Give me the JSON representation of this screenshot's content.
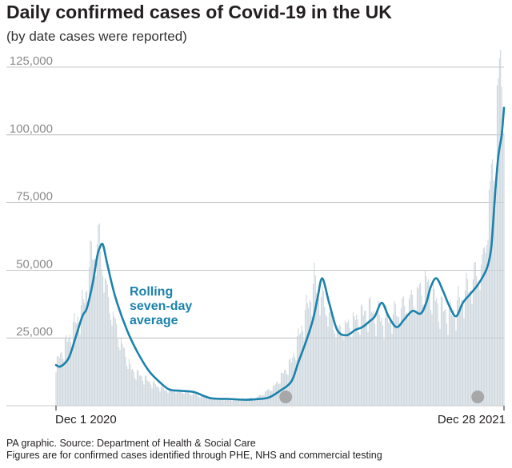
{
  "header": {
    "title": "Daily confirmed cases of Covid-19 in the UK",
    "subtitle": "(by date cases were reported)"
  },
  "source": {
    "line1": "PA graphic. Source: Department of Health & Social Care",
    "line2": "Figures are for confirmed cases identified through PHE, NHS and commercial testing"
  },
  "colors": {
    "bars": "#c9d3da",
    "line": "#1b82ab",
    "grid": "#b8b8b8",
    "marker": "#9e9e9e"
  },
  "chart_data": {
    "type": "bar",
    "title": "Daily confirmed cases of Covid-19 in the UK",
    "subtitle": "(by date cases were reported)",
    "x_start": "2020-12-01",
    "x_end": "2021-12-28",
    "x_tick_labels": [
      "Dec 1 2020",
      "Dec 28 2021"
    ],
    "y_ticks": [
      "25,000",
      "50,000",
      "75,000",
      "100,000",
      "125,000"
    ],
    "ylim": [
      0,
      125000
    ],
    "grid": true,
    "annotation": "Rolling seven-day average",
    "annotation_lines": [
      "Rolling",
      "seven-day",
      "average"
    ],
    "series": [
      {
        "name": "Daily confirmed cases",
        "kind": "bar",
        "dates": [
          "2020-12-01",
          "2020-12-15",
          "2020-12-25",
          "2021-01-01",
          "2021-01-08",
          "2021-01-15",
          "2021-01-25",
          "2021-02-05",
          "2021-02-20",
          "2021-03-05",
          "2021-03-25",
          "2021-04-15",
          "2021-05-05",
          "2021-05-25",
          "2021-06-10",
          "2021-06-25",
          "2021-07-05",
          "2021-07-15",
          "2021-07-25",
          "2021-08-05",
          "2021-08-20",
          "2021-09-01",
          "2021-09-15",
          "2021-10-01",
          "2021-10-12",
          "2021-10-21",
          "2021-11-01",
          "2021-11-12",
          "2021-11-22",
          "2021-12-01",
          "2021-12-10",
          "2021-12-15",
          "2021-12-20",
          "2021-12-24",
          "2021-12-28"
        ],
        "values": [
          15000,
          27000,
          37000,
          55000,
          60000,
          40000,
          25000,
          13000,
          9000,
          6000,
          5000,
          2800,
          2200,
          2800,
          7000,
          16000,
          30000,
          45000,
          36000,
          27000,
          31000,
          35000,
          31000,
          36000,
          40000,
          45000,
          36000,
          33000,
          40000,
          46000,
          52000,
          75000,
          92000,
          122000,
          120000
        ]
      },
      {
        "name": "Rolling seven-day average",
        "kind": "line",
        "dates": [
          "2020-12-01",
          "2020-12-05",
          "2020-12-12",
          "2020-12-18",
          "2020-12-24",
          "2020-12-28",
          "2021-01-02",
          "2021-01-06",
          "2021-01-08",
          "2021-01-11",
          "2021-01-15",
          "2021-01-22",
          "2021-02-01",
          "2021-02-10",
          "2021-02-20",
          "2021-03-01",
          "2021-03-10",
          "2021-03-20",
          "2021-04-01",
          "2021-04-15",
          "2021-05-01",
          "2021-05-15",
          "2021-05-25",
          "2021-06-05",
          "2021-06-15",
          "2021-06-25",
          "2021-07-01",
          "2021-07-08",
          "2021-07-14",
          "2021-07-18",
          "2021-07-22",
          "2021-07-28",
          "2021-08-04",
          "2021-08-12",
          "2021-08-20",
          "2021-08-26",
          "2021-09-01",
          "2021-09-06",
          "2021-09-12",
          "2021-09-18",
          "2021-09-25",
          "2021-10-02",
          "2021-10-09",
          "2021-10-16",
          "2021-10-21",
          "2021-10-25",
          "2021-10-30",
          "2021-11-05",
          "2021-11-10",
          "2021-11-16",
          "2021-11-22",
          "2021-11-28",
          "2021-12-04",
          "2021-12-10",
          "2021-12-14",
          "2021-12-17",
          "2021-12-20",
          "2021-12-23",
          "2021-12-26",
          "2021-12-28"
        ],
        "values": [
          15000,
          14500,
          17500,
          25000,
          33000,
          36000,
          45000,
          55000,
          58000,
          59500,
          52000,
          40000,
          28000,
          20000,
          13000,
          9000,
          6000,
          5500,
          5000,
          2800,
          2500,
          2200,
          2400,
          3000,
          5500,
          9000,
          16000,
          24000,
          32000,
          40000,
          47000,
          38000,
          28000,
          26000,
          28000,
          29000,
          31000,
          33000,
          38000,
          33000,
          29000,
          32000,
          35000,
          34000,
          38000,
          44000,
          47000,
          42000,
          37000,
          33000,
          38000,
          41000,
          44000,
          48000,
          52000,
          59000,
          77000,
          92000,
          100000,
          110000
        ]
      }
    ],
    "markers": [
      "2021-06-20",
      "2021-12-05"
    ]
  }
}
